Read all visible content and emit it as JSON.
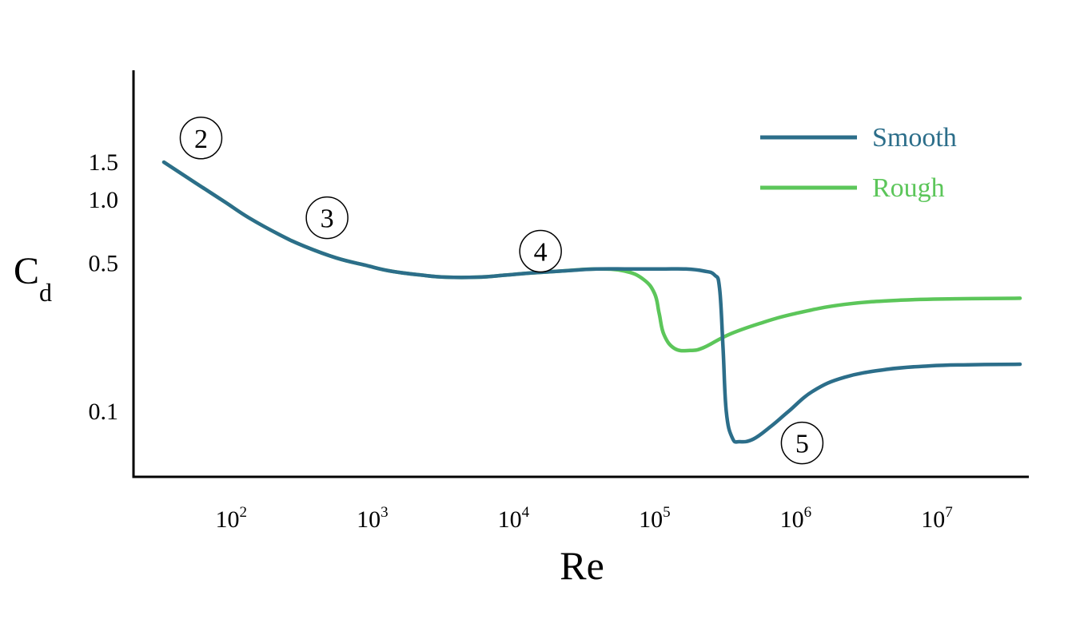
{
  "chart_data": {
    "type": "line",
    "xlabel": "Re",
    "ylabel": "C",
    "ylabel_subscript": "d",
    "x_scale": "log",
    "xlim": [
      30,
      35000000
    ],
    "ylim": [
      0.05,
      4.0
    ],
    "x_ticks": [
      {
        "base": "10",
        "exp": "2",
        "value": 100
      },
      {
        "base": "10",
        "exp": "3",
        "value": 1000
      },
      {
        "base": "10",
        "exp": "4",
        "value": 10000
      },
      {
        "base": "10",
        "exp": "5",
        "value": 100000
      },
      {
        "base": "10",
        "exp": "6",
        "value": 1000000
      },
      {
        "base": "10",
        "exp": "7",
        "value": 10000000
      }
    ],
    "y_ticks": [
      {
        "label": "1.5",
        "value": 1.5
      },
      {
        "label": "1.0",
        "value": 1.0
      },
      {
        "label": "0.5",
        "value": 0.5
      },
      {
        "label": "0.1",
        "value": 0.1
      }
    ],
    "legend": {
      "position": "top-right",
      "entries": [
        {
          "label": "Smooth",
          "color": "#2c6e8a"
        },
        {
          "label": "Rough",
          "color": "#5cc65a"
        }
      ]
    },
    "series": [
      {
        "name": "Smooth",
        "color": "#2c6e8a",
        "points": [
          [
            30,
            1.5
          ],
          [
            50,
            1.2
          ],
          [
            80,
            0.98
          ],
          [
            120,
            0.82
          ],
          [
            200,
            0.68
          ],
          [
            300,
            0.6
          ],
          [
            500,
            0.53
          ],
          [
            800,
            0.49
          ],
          [
            1200,
            0.46
          ],
          [
            2000,
            0.44
          ],
          [
            3000,
            0.43
          ],
          [
            5000,
            0.43
          ],
          [
            8000,
            0.44
          ],
          [
            12000,
            0.45
          ],
          [
            20000,
            0.46
          ],
          [
            35000,
            0.47
          ],
          [
            60000,
            0.47
          ],
          [
            100000,
            0.47
          ],
          [
            150000,
            0.47
          ],
          [
            200000,
            0.46
          ],
          [
            240000,
            0.44
          ],
          [
            260000,
            0.38
          ],
          [
            275000,
            0.2
          ],
          [
            290000,
            0.1
          ],
          [
            320000,
            0.075
          ],
          [
            360000,
            0.072
          ],
          [
            450000,
            0.074
          ],
          [
            600000,
            0.085
          ],
          [
            800000,
            0.1
          ],
          [
            1200000,
            0.125
          ],
          [
            2000000,
            0.145
          ],
          [
            4000000,
            0.158
          ],
          [
            8000000,
            0.164
          ],
          [
            15000000,
            0.166
          ],
          [
            35000000,
            0.167
          ]
        ]
      },
      {
        "name": "Rough",
        "color": "#5cc65a",
        "points": [
          [
            30,
            1.5
          ],
          [
            50,
            1.2
          ],
          [
            80,
            0.98
          ],
          [
            120,
            0.82
          ],
          [
            200,
            0.68
          ],
          [
            300,
            0.6
          ],
          [
            500,
            0.53
          ],
          [
            800,
            0.49
          ],
          [
            1200,
            0.46
          ],
          [
            2000,
            0.44
          ],
          [
            3000,
            0.43
          ],
          [
            5000,
            0.43
          ],
          [
            8000,
            0.44
          ],
          [
            12000,
            0.45
          ],
          [
            20000,
            0.46
          ],
          [
            35000,
            0.47
          ],
          [
            55000,
            0.46
          ],
          [
            75000,
            0.42
          ],
          [
            90000,
            0.36
          ],
          [
            97000,
            0.29
          ],
          [
            105000,
            0.23
          ],
          [
            125000,
            0.198
          ],
          [
            160000,
            0.194
          ],
          [
            200000,
            0.2
          ],
          [
            300000,
            0.23
          ],
          [
            500000,
            0.26
          ],
          [
            900000,
            0.29
          ],
          [
            2000000,
            0.32
          ],
          [
            5000000,
            0.335
          ],
          [
            12000000,
            0.34
          ],
          [
            35000000,
            0.342
          ]
        ]
      }
    ],
    "annotations": [
      {
        "label": "2",
        "x": 55,
        "y": 1.95
      },
      {
        "label": "3",
        "x": 430,
        "y": 0.82
      },
      {
        "label": "4",
        "x": 14000,
        "y": 0.57
      },
      {
        "label": "5",
        "x": 1000000,
        "y": 0.071
      }
    ]
  }
}
